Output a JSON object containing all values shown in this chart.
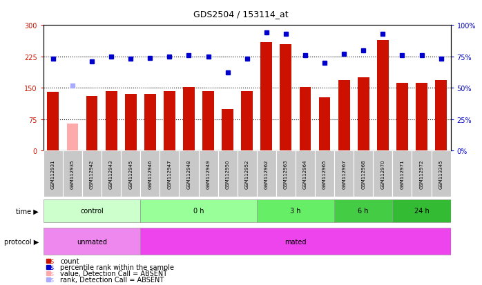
{
  "title": "GDS2504 / 153114_at",
  "samples": [
    "GSM112931",
    "GSM112935",
    "GSM112942",
    "GSM112943",
    "GSM112945",
    "GSM112946",
    "GSM112947",
    "GSM112948",
    "GSM112949",
    "GSM112950",
    "GSM112952",
    "GSM112962",
    "GSM112963",
    "GSM112964",
    "GSM112965",
    "GSM112967",
    "GSM112968",
    "GSM112970",
    "GSM112971",
    "GSM112972",
    "GSM113345"
  ],
  "count_values": [
    140,
    65,
    130,
    143,
    135,
    135,
    142,
    152,
    143,
    100,
    143,
    260,
    255,
    152,
    128,
    168,
    175,
    265,
    162,
    162,
    168
  ],
  "count_absent": [
    false,
    true,
    false,
    false,
    false,
    false,
    false,
    false,
    false,
    false,
    false,
    false,
    false,
    false,
    false,
    false,
    false,
    false,
    false,
    false,
    false
  ],
  "percentile_pct": [
    73,
    52,
    71,
    75,
    73,
    74,
    75,
    76,
    75,
    62,
    73,
    94,
    93,
    76,
    70,
    77,
    80,
    93,
    76,
    76,
    73
  ],
  "percentile_absent": [
    false,
    true,
    false,
    false,
    false,
    false,
    false,
    false,
    false,
    false,
    false,
    false,
    false,
    false,
    false,
    false,
    false,
    false,
    false,
    false,
    false
  ],
  "time_groups": [
    {
      "label": "control",
      "start": 0,
      "end": 5,
      "color": "#ccffcc"
    },
    {
      "label": "0 h",
      "start": 5,
      "end": 11,
      "color": "#99ff99"
    },
    {
      "label": "3 h",
      "start": 11,
      "end": 15,
      "color": "#66ee66"
    },
    {
      "label": "6 h",
      "start": 15,
      "end": 18,
      "color": "#44cc44"
    },
    {
      "label": "24 h",
      "start": 18,
      "end": 21,
      "color": "#33bb33"
    }
  ],
  "protocol_groups": [
    {
      "label": "unmated",
      "start": 0,
      "end": 5,
      "color": "#ee88ee"
    },
    {
      "label": "mated",
      "start": 5,
      "end": 21,
      "color": "#ee44ee"
    }
  ],
  "count_color": "#cc1100",
  "count_absent_color": "#ffaaaa",
  "percentile_color": "#0000cc",
  "percentile_absent_color": "#aaaaff",
  "ylim_left": [
    0,
    300
  ],
  "ylim_right": [
    0,
    100
  ],
  "yticks_left": [
    0,
    75,
    150,
    225,
    300
  ],
  "yticks_right": [
    0,
    25,
    50,
    75,
    100
  ],
  "ytick_labels_left": [
    "0",
    "75",
    "150",
    "225",
    "300"
  ],
  "ytick_labels_right": [
    "0%",
    "25%",
    "50%",
    "75%",
    "100%"
  ],
  "hlines": [
    75,
    150,
    225
  ],
  "bg_color": "#ffffff"
}
